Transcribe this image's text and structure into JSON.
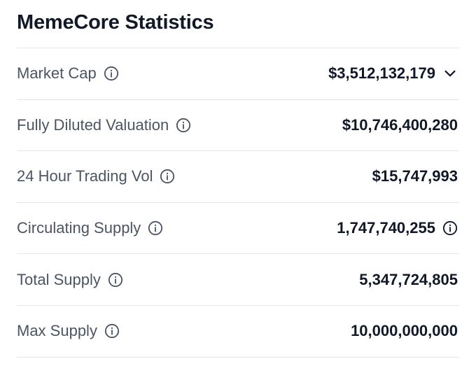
{
  "title": "MemeCore Statistics",
  "colors": {
    "title": "#111827",
    "label": "#4b5563",
    "value": "#111827",
    "divider": "#e5e7eb",
    "icon": "#4b5563"
  },
  "rows": [
    {
      "label": "Market Cap",
      "value": "$3,512,132,179",
      "label_icon": "info-icon",
      "value_icon": "chevron-down-icon"
    },
    {
      "label": "Fully Diluted Valuation",
      "value": "$10,746,400,280",
      "label_icon": "info-icon"
    },
    {
      "label": "24 Hour Trading Vol",
      "value": "$15,747,993",
      "label_icon": "info-icon"
    },
    {
      "label": "Circulating Supply",
      "value": "1,747,740,255",
      "label_icon": "info-icon",
      "value_icon": "info-icon"
    },
    {
      "label": "Total Supply",
      "value": "5,347,724,805",
      "label_icon": "info-icon"
    },
    {
      "label": "Max Supply",
      "value": "10,000,000,000",
      "label_icon": "info-icon"
    }
  ]
}
